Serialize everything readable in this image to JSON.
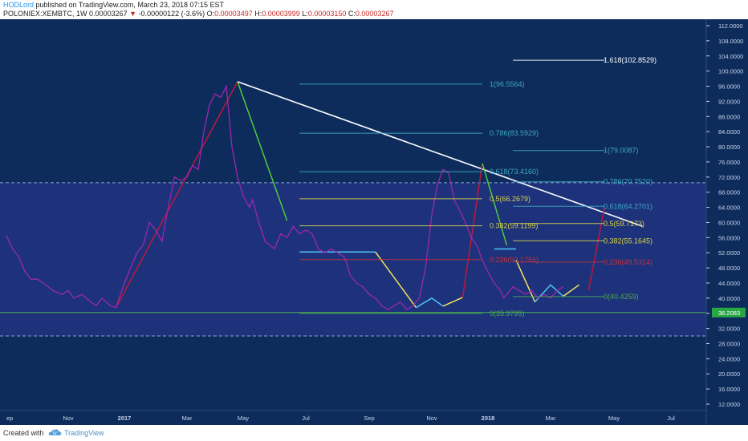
{
  "header": {
    "author": "HODLord",
    "published": " published on TradingView.com, March 23, 2018 07:15 EST",
    "symbol": "POLONIEX:XEMBTC, 1W",
    "last": "0.00003267",
    "change_arrow": "▼",
    "change": "-0.00000122 (-3.6%)",
    "o_label": "O:",
    "o_value": "0.00003497",
    "h_label": "H:",
    "h_value": "0.00003999",
    "l_label": "L:",
    "l_value": "0.00003150",
    "c_label": "C:",
    "c_value": "0.00003267"
  },
  "footer": {
    "created_with": "Created with",
    "brand": "TradingView"
  },
  "colors": {
    "background": "#0d2c5c",
    "band": "#1d327a",
    "price_line": "#9c27b0",
    "trend_white": "#ffffff",
    "fib_cyan": "#3fa7c4",
    "fib_yellow": "#d8d24a",
    "fib_red": "#c1333f",
    "fib_green": "#4ca852",
    "up_leg": "#c0183a",
    "down_leg": "#4fcb3c",
    "yellow_leg": "#f3e55a",
    "blue_leg": "#4fc3f7",
    "support": "#4caf50",
    "dashed": "#8fa6d6",
    "axis_text": "#c7d3e8",
    "price_tag_bg": "#27a844"
  },
  "chart_data": {
    "type": "line",
    "title": "POLONIEX:XEMBTC, 1W",
    "price_scale": "×1e-6 BTC",
    "y_axis_ticks": [
      "112.0000",
      "108.0000",
      "104.0000",
      "100.0000",
      "96.0000",
      "92.0000",
      "88.0000",
      "84.0000",
      "80.0000",
      "76.0000",
      "72.0000",
      "68.0000",
      "64.0000",
      "60.0000",
      "56.0000",
      "52.0000",
      "48.0000",
      "44.0000",
      "40.0000",
      "36.0000",
      "32.0000",
      "28.0000",
      "24.0000",
      "20.0000",
      "16.0000",
      "12.0000"
    ],
    "x_axis_ticks": [
      "ep",
      "Nov",
      "2017",
      "Mar",
      "May",
      "Jul",
      "Sep",
      "Nov",
      "2018",
      "Mar",
      "May",
      "Jul"
    ],
    "ylim": [
      10,
      115
    ],
    "current_price_tag": "36.2083",
    "support_level": 36.2,
    "dashed_levels": [
      70.5,
      30
    ],
    "band": [
      30,
      70.5
    ],
    "series": [
      {
        "x": [
          0.0,
          0.1,
          0.2,
          0.3,
          0.4,
          0.5,
          0.6,
          0.75,
          0.9,
          1.0,
          1.1,
          1.25,
          1.4,
          1.5,
          1.6,
          1.75,
          1.85,
          2.0,
          2.1,
          2.2,
          2.3,
          2.4,
          2.5,
          2.6,
          2.7,
          2.75,
          2.8,
          2.9,
          3.0,
          3.1,
          3.2,
          3.3,
          3.4,
          3.5,
          3.6,
          3.7,
          3.8,
          3.9,
          4.0,
          4.1,
          4.15,
          4.2,
          4.25,
          4.35,
          4.5,
          4.6,
          4.7,
          4.8,
          4.9,
          5.0,
          5.1,
          5.2,
          5.3,
          5.4,
          5.5,
          5.6,
          5.65,
          5.7,
          5.8,
          5.9,
          6.0,
          6.1,
          6.2,
          6.3,
          6.4,
          6.5,
          6.6,
          6.7,
          6.8,
          6.9,
          7.0,
          7.1,
          7.2,
          7.3,
          7.4,
          7.5,
          7.6,
          7.7,
          7.8,
          7.9,
          8.0,
          8.1,
          8.2,
          8.25,
          8.3,
          8.4,
          8.5,
          8.6,
          8.7,
          8.8,
          8.9,
          9.0,
          9.1,
          9.2
        ],
        "values": [
          56.5,
          53,
          51,
          47,
          45,
          45,
          44,
          42,
          41,
          42,
          40,
          41,
          39,
          38,
          40,
          38,
          37.5,
          44,
          48,
          52,
          54,
          60,
          58,
          55,
          64,
          68,
          72,
          71,
          72,
          75,
          74,
          84,
          91,
          94,
          93,
          96,
          80,
          72,
          67,
          64,
          66,
          63,
          60,
          55,
          53,
          57,
          56,
          59,
          57,
          58,
          57,
          53,
          52,
          53,
          52,
          51,
          49,
          46,
          44,
          43,
          41,
          40,
          38,
          37,
          38,
          39,
          37,
          38,
          40,
          48,
          62,
          70,
          74,
          73,
          66,
          63,
          60,
          56,
          54,
          50,
          47,
          44,
          42,
          40,
          41,
          43,
          42,
          41,
          42,
          40,
          41,
          40,
          42,
          43
        ]
      }
    ],
    "drawn_segments": [
      {
        "type": "up_leg",
        "points": [
          [
            1.85,
            37.5
          ],
          [
            3.9,
            97.2
          ]
        ]
      },
      {
        "type": "down_leg",
        "points": [
          [
            3.9,
            97.2
          ],
          [
            4.7,
            60.5
          ]
        ]
      },
      {
        "type": "trendline",
        "points": [
          [
            3.9,
            97.2
          ],
          [
            10.5,
            59
          ]
        ]
      },
      {
        "type": "blue_flat",
        "points": [
          [
            4.9,
            52.2
          ],
          [
            6.1,
            52.2
          ]
        ]
      },
      {
        "type": "yellow_leg",
        "points": [
          [
            6.1,
            52.2
          ],
          [
            6.75,
            37.5
          ]
        ]
      },
      {
        "type": "blue_leg",
        "points": [
          [
            6.75,
            37.5
          ],
          [
            7.0,
            40
          ],
          [
            7.2,
            37.9
          ]
        ]
      },
      {
        "type": "yellow_leg",
        "points": [
          [
            7.2,
            37.9
          ],
          [
            7.55,
            40.2
          ]
        ]
      },
      {
        "type": "up_leg",
        "points": [
          [
            7.55,
            40.2
          ],
          [
            7.9,
            75.6
          ]
        ]
      },
      {
        "type": "down_leg",
        "points": [
          [
            7.9,
            75.6
          ],
          [
            8.3,
            54
          ]
        ]
      },
      {
        "type": "blue_flat",
        "points": [
          [
            8.1,
            53
          ],
          [
            8.45,
            53
          ]
        ]
      },
      {
        "type": "yellow_leg",
        "points": [
          [
            8.45,
            50
          ],
          [
            8.75,
            39
          ]
        ]
      },
      {
        "type": "blue_leg",
        "points": [
          [
            8.75,
            39
          ],
          [
            9.0,
            43.5
          ],
          [
            9.2,
            40.5
          ]
        ]
      },
      {
        "type": "yellow_leg",
        "points": [
          [
            9.2,
            40.5
          ],
          [
            9.45,
            43.5
          ]
        ]
      },
      {
        "type": "up_leg",
        "points": [
          [
            9.6,
            42
          ],
          [
            9.85,
            64
          ]
        ]
      }
    ],
    "fib_left": {
      "x_range": [
        4.9,
        7.9
      ],
      "levels": [
        {
          "label": "1(96.5564)",
          "value": 96.5564
        },
        {
          "label": "0.786(83.5929)",
          "value": 83.5929
        },
        {
          "label": "0.618(73.4160)",
          "value": 73.416
        },
        {
          "label": "0.5(66.2679)",
          "value": 66.2679
        },
        {
          "label": "0.382(59.1199)",
          "value": 59.1199
        },
        {
          "label": "0.236(50.1756)",
          "value": 50.1756
        },
        {
          "label": "0(35.9795)",
          "value": 35.9795
        }
      ]
    },
    "fib_right": {
      "x_range": [
        8.4,
        9.85
      ],
      "levels": [
        {
          "label": "1.618(102.8529)",
          "value": 102.8529
        },
        {
          "label": "1(79.0087)",
          "value": 79.0087
        },
        {
          "label": "0.786(70.7520)",
          "value": 70.752
        },
        {
          "label": "0.618(64.2701)",
          "value": 64.2701
        },
        {
          "label": "0.5(59.7173)",
          "value": 59.7173
        },
        {
          "label": "0.382(55.1645)",
          "value": 55.1645
        },
        {
          "label": "0.236(49.5314)",
          "value": 49.5314
        },
        {
          "label": "0(40.4259)",
          "value": 40.4259
        }
      ]
    }
  }
}
